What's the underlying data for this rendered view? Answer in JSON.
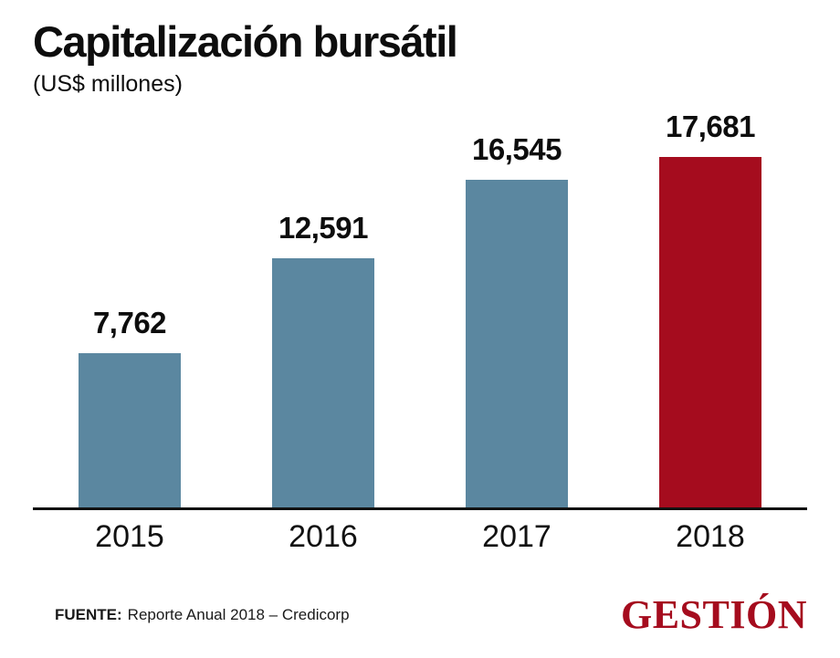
{
  "title": "Capitalización bursátil",
  "subtitle": "(US$ millones)",
  "footer": {
    "source_label": "FUENTE:",
    "source_text": "Reporte Anual 2018 – Credicorp",
    "logo": "GESTIÓN"
  },
  "colors": {
    "bar_default": "#5b87a0",
    "bar_highlight": "#a50c1e",
    "logo": "#a50c1e",
    "axis": "#111111"
  },
  "chart_data": {
    "type": "bar",
    "title": "Capitalización bursátil",
    "subtitle": "(US$ millones)",
    "categories": [
      "2015",
      "2016",
      "2017",
      "2018"
    ],
    "values": [
      7762,
      12591,
      16545,
      17681
    ],
    "value_labels": [
      "7,762",
      "12,591",
      "16,545",
      "17,681"
    ],
    "ylabel": "US$ millones",
    "ylim": [
      0,
      17681
    ],
    "highlight_index": 3,
    "grid": false,
    "legend": false,
    "source": "Reporte Anual 2018 – Credicorp"
  }
}
